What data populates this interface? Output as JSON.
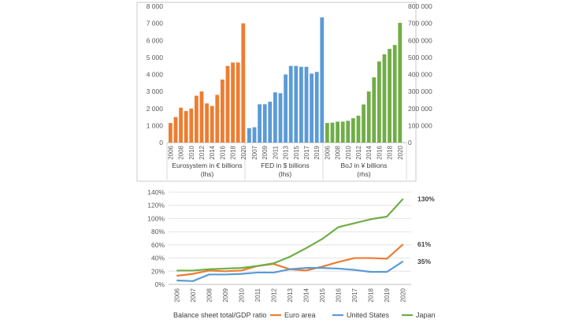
{
  "chart_data": [
    {
      "type": "bar",
      "title": "",
      "colors": {
        "eurosystem": "#ED7D31",
        "fed": "#5B9BD5",
        "boj": "#70AD47"
      },
      "groups": [
        {
          "key": "eurosystem",
          "label_line1": "Eurosystem in € billions",
          "label_line2": "(lhs)",
          "axis": "left",
          "tick_labels": [
            "2006",
            "2008",
            "2010",
            "2012",
            "2014",
            "2016",
            "2018",
            "2020"
          ],
          "x": [
            2006,
            2007,
            2008,
            2009,
            2010,
            2011,
            2012,
            2013,
            2014,
            2015,
            2016,
            2017,
            2018,
            2019,
            2020
          ],
          "values": [
            1150,
            1500,
            2050,
            1850,
            2000,
            2750,
            3000,
            2300,
            2150,
            2800,
            3700,
            4500,
            4700,
            4700,
            7000
          ]
        },
        {
          "key": "fed",
          "label_line1": "FED in $ billions",
          "label_line2": "(lhs)",
          "axis": "left",
          "tick_labels": [
            "2007",
            "2009",
            "2011",
            "2013",
            "2015",
            "2017",
            "2019"
          ],
          "x": [
            2006,
            2007,
            2008,
            2009,
            2010,
            2011,
            2012,
            2013,
            2014,
            2015,
            2016,
            2017,
            2018,
            2019,
            2020
          ],
          "values": [
            850,
            900,
            2250,
            2250,
            2400,
            2950,
            2900,
            4000,
            4500,
            4500,
            4450,
            4450,
            4050,
            4150,
            7350
          ]
        },
        {
          "key": "boj",
          "label_line1": "BoJ in ¥ billions",
          "label_line2": "(rhs)",
          "axis": "right",
          "tick_labels": [
            "2006",
            "2008",
            "2010",
            "2012",
            "2014",
            "2016",
            "2018",
            "2020"
          ],
          "x": [
            2006,
            2007,
            2008,
            2009,
            2010,
            2011,
            2012,
            2013,
            2014,
            2015,
            2016,
            2017,
            2018,
            2019,
            2020
          ],
          "values": [
            115000,
            117000,
            123000,
            123000,
            128000,
            143000,
            158000,
            224000,
            300000,
            383000,
            476000,
            518000,
            550000,
            573000,
            703000
          ]
        }
      ],
      "left_axis": {
        "ylim": [
          0,
          8000
        ],
        "ticks": [
          "0",
          "1 000",
          "2 000",
          "3 000",
          "4 000",
          "5 000",
          "6 000",
          "7 000",
          "8 000"
        ]
      },
      "right_axis": {
        "ylim": [
          0,
          800000
        ],
        "ticks": [
          "0",
          "100 000",
          "200 000",
          "300 000",
          "400 000",
          "500 000",
          "600 000",
          "700 000",
          "800 000"
        ]
      }
    },
    {
      "type": "line",
      "title": "Balance sheet total/GDP ratio",
      "x": [
        "2006",
        "2007",
        "2008",
        "2009",
        "2010",
        "2011",
        "2012",
        "2013",
        "2014",
        "2015",
        "2016",
        "2017",
        "2018",
        "2019",
        "2020"
      ],
      "ylim": [
        0,
        1.4
      ],
      "y_ticks": [
        "0%",
        "20%",
        "40%",
        "60%",
        "80%",
        "100%",
        "120%",
        "140%"
      ],
      "series": [
        {
          "name": "Euro area",
          "color": "#ED7D31",
          "end_label": "61%",
          "values": [
            0.13,
            0.16,
            0.21,
            0.2,
            0.21,
            0.28,
            0.31,
            0.23,
            0.21,
            0.27,
            0.34,
            0.4,
            0.4,
            0.39,
            0.61
          ]
        },
        {
          "name": "United States",
          "color": "#5B9BD5",
          "end_label": "35%",
          "values": [
            0.06,
            0.05,
            0.15,
            0.15,
            0.16,
            0.18,
            0.18,
            0.23,
            0.25,
            0.25,
            0.24,
            0.22,
            0.19,
            0.19,
            0.35
          ]
        },
        {
          "name": "Japan",
          "color": "#70AD47",
          "end_label": "130%",
          "values": [
            0.21,
            0.21,
            0.23,
            0.24,
            0.25,
            0.28,
            0.32,
            0.42,
            0.55,
            0.69,
            0.87,
            0.93,
            0.99,
            1.03,
            1.3
          ]
        }
      ]
    }
  ]
}
